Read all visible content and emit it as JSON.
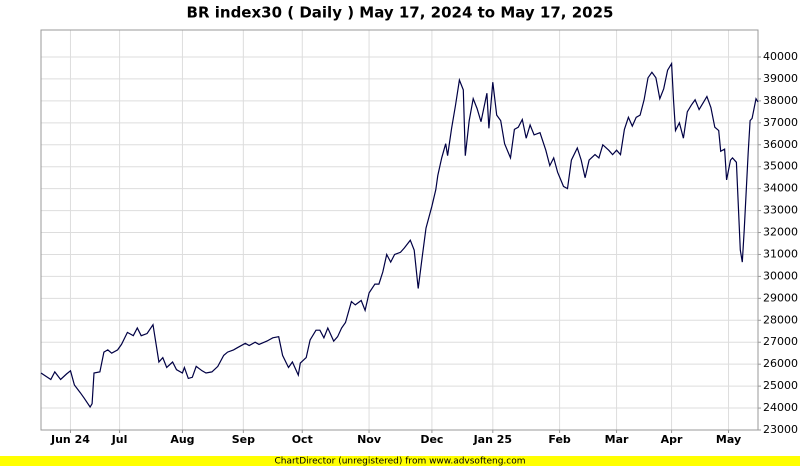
{
  "chart_data": {
    "type": "line",
    "title": "BR index30 ( Daily ) May 17, 2024 to May 17, 2025",
    "footer": "ChartDirector (unregistered) from www.advsofteng.com",
    "color": "#000044",
    "grid": true,
    "x": [
      0,
      5,
      7,
      10,
      13,
      15,
      17,
      20,
      22,
      25,
      26,
      27,
      30,
      32,
      34,
      36,
      39,
      41,
      44,
      47,
      49,
      51,
      54,
      57,
      60,
      62,
      64,
      67,
      69,
      72,
      73,
      75,
      77,
      79,
      82,
      84,
      87,
      90,
      93,
      95,
      98,
      100,
      104,
      106,
      109,
      111,
      115,
      118,
      121,
      123,
      126,
      128,
      131,
      132,
      135,
      137,
      140,
      142,
      144,
      146,
      149,
      151,
      153,
      155,
      158,
      160,
      163,
      165,
      167,
      170,
      172,
      174,
      176,
      178,
      180,
      183,
      185,
      188,
      190,
      192,
      194,
      196,
      199,
      201,
      202,
      204,
      206,
      207,
      209,
      211,
      213,
      215,
      216,
      218,
      220,
      222,
      224,
      227,
      228,
      230,
      232,
      234,
      236,
      239,
      241,
      243,
      245,
      247,
      249,
      251,
      254,
      257,
      259,
      261,
      263,
      266,
      268,
      270,
      273,
      275,
      277,
      279,
      282,
      284,
      286,
      289,
      291,
      293,
      295,
      297,
      299,
      301,
      303,
      305,
      307,
      309,
      311,
      313,
      315,
      317,
      319,
      321,
      322,
      323,
      325,
      327,
      329,
      331,
      333,
      335,
      337,
      339,
      341,
      343,
      345,
      346,
      348,
      349,
      351,
      352,
      354,
      356,
      357,
      358,
      360,
      361,
      362,
      364,
      365
    ],
    "values": [
      25600,
      25300,
      25650,
      25300,
      25550,
      25700,
      25050,
      24700,
      24450,
      24050,
      24200,
      25600,
      25650,
      26550,
      26650,
      26500,
      26650,
      26900,
      27450,
      27300,
      27650,
      27300,
      27400,
      27800,
      26100,
      26300,
      25850,
      26100,
      25750,
      25600,
      25850,
      25350,
      25400,
      25900,
      25700,
      25600,
      25650,
      25900,
      26400,
      26550,
      26650,
      26750,
      26950,
      26850,
      27000,
      26900,
      27050,
      27200,
      27250,
      26400,
      25850,
      26100,
      25500,
      26050,
      26300,
      27100,
      27550,
      27550,
      27200,
      27650,
      27050,
      27250,
      27650,
      27900,
      28850,
      28700,
      28900,
      28450,
      29250,
      29650,
      29650,
      30200,
      31000,
      30650,
      31000,
      31100,
      31300,
      31650,
      31200,
      29450,
      30850,
      32200,
      33200,
      33950,
      34600,
      35400,
      36050,
      35500,
      36750,
      37800,
      38950,
      38500,
      35500,
      37100,
      38100,
      37650,
      37050,
      38350,
      36750,
      38850,
      37350,
      37100,
      36050,
      35400,
      36700,
      36800,
      37150,
      36300,
      36900,
      36450,
      36550,
      35750,
      35050,
      35400,
      34750,
      34100,
      34000,
      35300,
      35850,
      35300,
      34500,
      35300,
      35550,
      35400,
      36000,
      35750,
      35550,
      35750,
      35550,
      36700,
      37250,
      36850,
      37250,
      37350,
      38050,
      39050,
      39300,
      39050,
      38100,
      38550,
      39400,
      39700,
      38050,
      36650,
      37000,
      36300,
      37500,
      37800,
      38050,
      37600,
      37900,
      38200,
      37700,
      36800,
      36650,
      35700,
      35800,
      34400,
      35300,
      35400,
      35200,
      31200,
      30650,
      32100,
      35650,
      37100,
      37200,
      38100,
      37950
    ],
    "xlim": [
      0,
      365
    ],
    "xticks": [
      {
        "value": 15,
        "label": "Jun 24"
      },
      {
        "value": 40,
        "label": "Jul"
      },
      {
        "value": 72,
        "label": "Aug"
      },
      {
        "value": 103,
        "label": "Sep"
      },
      {
        "value": 133,
        "label": "Oct"
      },
      {
        "value": 167,
        "label": "Nov"
      },
      {
        "value": 199,
        "label": "Dec"
      },
      {
        "value": 230,
        "label": "Jan 25"
      },
      {
        "value": 264,
        "label": "Feb"
      },
      {
        "value": 293,
        "label": "Mar"
      },
      {
        "value": 321,
        "label": "Apr"
      },
      {
        "value": 350,
        "label": "May"
      }
    ],
    "ylim": [
      23000,
      41230
    ],
    "yticks": [
      23000,
      24000,
      25000,
      26000,
      27000,
      28000,
      29000,
      30000,
      31000,
      32000,
      33000,
      34000,
      35000,
      36000,
      37000,
      38000,
      39000,
      40000
    ]
  }
}
